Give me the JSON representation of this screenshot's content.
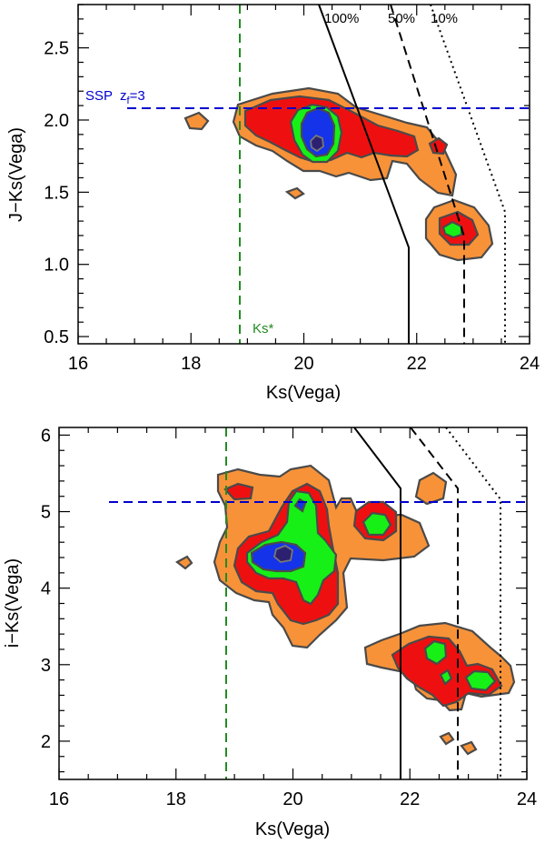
{
  "chart_data": [
    {
      "type": "contour",
      "title": "",
      "xlabel": "Ks(Vega)",
      "ylabel": "J−Ks(Vega)",
      "xlim": [
        16,
        24
      ],
      "ylim": [
        0.45,
        2.8
      ],
      "xticks": [
        "16",
        "18",
        "20",
        "22",
        "24"
      ],
      "yticks": [
        "0.5",
        "1.0",
        "1.5",
        "2.0",
        "2.5"
      ],
      "completeness_lines": [
        {
          "label": "100%",
          "style": "solid",
          "points": [
            [
              21.1,
              2.8
            ],
            [
              21.9,
              1.15
            ],
            [
              21.9,
              0.45
            ]
          ]
        },
        {
          "label": "50%",
          "style": "dashed",
          "points": [
            [
              22.1,
              2.8
            ],
            [
              22.8,
              1.22
            ],
            [
              22.8,
              0.45
            ]
          ]
        },
        {
          "label": "10%",
          "style": "dotted",
          "points": [
            [
              22.8,
              2.8
            ],
            [
              23.55,
              1.38
            ],
            [
              23.55,
              0.45
            ]
          ]
        }
      ],
      "ssp_line": {
        "label_prefix": "SSP",
        "label_z": "z",
        "label_sub": "f",
        "label_suffix": "=3",
        "y": 2.09,
        "x_start": 16.9,
        "color": "#0000cc"
      },
      "ks_star": {
        "label": "Ks*",
        "x": 18.9,
        "color": "#228b22"
      },
      "density_levels": [
        {
          "name": "lowest",
          "color": "#f79239"
        },
        {
          "name": "low",
          "color": "#ee1010"
        },
        {
          "name": "mid",
          "color": "#16f016"
        },
        {
          "name": "high",
          "color": "#1533e8"
        },
        {
          "name": "peak",
          "color": "#2c2070"
        }
      ],
      "clusters": [
        {
          "name": "main",
          "x": 20.2,
          "y": 1.85,
          "peak": 20.3
        },
        {
          "name": "secondary",
          "x": 22.6,
          "y": 1.27,
          "peak": 22.6
        }
      ]
    },
    {
      "type": "contour",
      "title": "",
      "xlabel": "Ks(Vega)",
      "ylabel": "i−Ks(Vega)",
      "xlim": [
        16,
        24
      ],
      "ylim": [
        1.5,
        6.1
      ],
      "xticks": [
        "16",
        "18",
        "20",
        "22",
        "24"
      ],
      "yticks": [
        "2",
        "3",
        "4",
        "5",
        "6"
      ],
      "completeness_lines": [
        {
          "label": "100%",
          "style": "solid",
          "points": [
            [
              21.1,
              6.1
            ],
            [
              21.85,
              5.25
            ],
            [
              21.85,
              1.5
            ]
          ]
        },
        {
          "label": "50%",
          "style": "dashed",
          "points": [
            [
              22.1,
              6.1
            ],
            [
              22.8,
              5.25
            ],
            [
              22.8,
              1.5
            ]
          ]
        },
        {
          "label": "10%",
          "style": "dotted",
          "points": [
            [
              22.8,
              6.1
            ],
            [
              23.5,
              5.1
            ],
            [
              23.5,
              1.5
            ]
          ]
        }
      ],
      "ssp_line": {
        "y": 5.05,
        "x_start": 16.9,
        "color": "#0000cc"
      },
      "ks_star": {
        "x": 18.9,
        "color": "#228b22"
      },
      "clusters": [
        {
          "name": "main",
          "x": 19.8,
          "y": 4.35,
          "peak": 19.9
        },
        {
          "name": "upper",
          "x": 21.5,
          "y": 4.8
        },
        {
          "name": "faint",
          "x": 23.0,
          "y": 2.75
        }
      ]
    }
  ]
}
